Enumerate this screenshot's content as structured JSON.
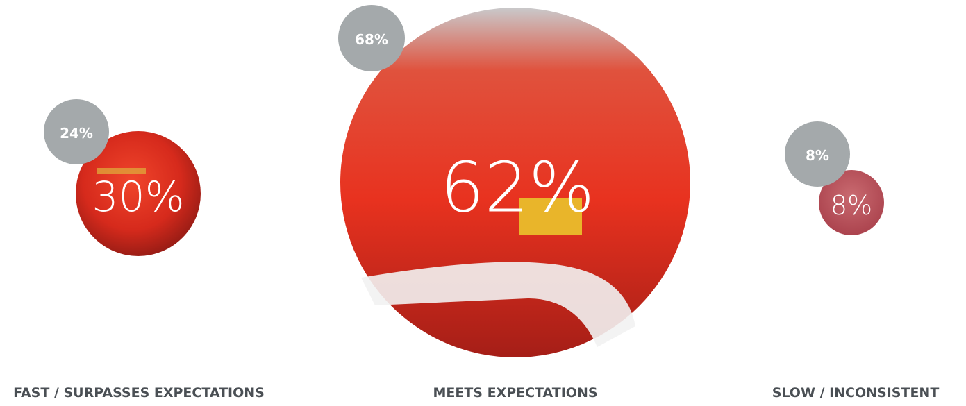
{
  "items": [
    {
      "value": "30%",
      "previous": "24%",
      "label": "FAST / SURPASSES EXPECTATIONS"
    },
    {
      "value": "62%",
      "previous": "68%",
      "label": "MEETS EXPECTATIONS"
    },
    {
      "value": "8%",
      "previous": "8%",
      "label": "SLOW  / INCONSISTENT"
    }
  ]
}
